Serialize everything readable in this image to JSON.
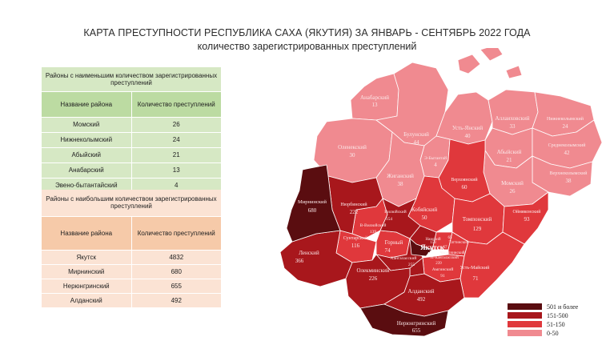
{
  "title": "КАРТА ПРЕСТУПНОСТИ РЕСПУБЛИКА САХА  (ЯКУТИЯ) ЗА ЯНВАРЬ - СЕНТЯБРЬ 2022 ГОДА",
  "subtitle": "количество зарегистрированных преступлений",
  "least_table": {
    "heading": "Районы с наименьшим количеством зарегистрированных преступлений",
    "col_district": "Название района",
    "col_count": "Количество преступлений",
    "rows": [
      {
        "district": "Момский",
        "count": "26"
      },
      {
        "district": "Нижнеколымский",
        "count": "24"
      },
      {
        "district": "Абыйский",
        "count": "21"
      },
      {
        "district": "Анабарский",
        "count": "13"
      },
      {
        "district": "Эвено-бытантайский",
        "count": "4"
      }
    ]
  },
  "most_table": {
    "heading": "Районы с наибольшим количеством зарегистрированных преступлений",
    "col_district": "Название района",
    "col_count": "Количество преступлений",
    "rows": [
      {
        "district": "Якутск",
        "count": "4832"
      },
      {
        "district": "Мирнинский",
        "count": "680"
      },
      {
        "district": "Нерюнгринский",
        "count": "655"
      },
      {
        "district": "Алданский",
        "count": "492"
      }
    ]
  },
  "legend": [
    {
      "label": "501 и более",
      "color": "#5a0d10"
    },
    {
      "label": "151-500",
      "color": "#a8171c"
    },
    {
      "label": "51-150",
      "color": "#e0383c"
    },
    {
      "label": "0-50",
      "color": "#f08a90"
    }
  ],
  "map_labels": {
    "anabar_name": "Анабарский",
    "anabar_val": "13",
    "oleneksky_name": "Оленекский",
    "oleneksky_val": "30",
    "bulunsky_name": "Булунский",
    "bulunsky_val": "44",
    "ustyansky_name": "Усть-Янский",
    "ustyansky_val": "40",
    "allaikhov_name": "Аллаиховский",
    "allaikhov_val": "33",
    "nizhnekolym_name": "Нижнеколымский",
    "nizhnekolym_val": "24",
    "abyisky_name": "Абыйский",
    "abyisky_val": "21",
    "srednekolym_name": "Среднеколымский",
    "srednekolym_val": "42",
    "verkhnekolym_name": "Верхнеколымский",
    "verkhnekolym_val": "38",
    "momsky_name": "Момский",
    "momsky_val": "26",
    "eveno_name": "Э-Бытантай",
    "eveno_val": "4",
    "zhigansky_name": "Жиганский",
    "zhigansky_val": "38",
    "verkhoyansky_name": "Верхоянский",
    "verkhoyansky_val": "60",
    "mirninsky_name": "Мирнинский",
    "mirninsky_val": "680",
    "nyurbinsky_name": "Нюрбинский",
    "nyurbinsky_val": "222",
    "vilyuysky_name": "Вилюйский",
    "vilyuysky_val": "154",
    "vverkh_name": "В-Вилюйский",
    "vverkh_val": "139",
    "kobyaysky_name": "Кобяйский",
    "kobyaysky_val": "50",
    "tomponsky_name": "Томпонский",
    "tomponsky_val": "129",
    "oymyakonsky_name": "Оймяконский",
    "oymyakonsky_val": "93",
    "suntarsky_name": "Сунтарский",
    "suntarsky_val": "116",
    "gorny_name": "Горный",
    "gorny_val": "74",
    "yakutsk_name": "Якутск",
    "yakutsk_val": "4832",
    "khangalassky_name": "Хангаласский",
    "khangalassky_val": "255",
    "mmegino_name": "М-Кангаласский",
    "mmegino_val": "239",
    "churapchinsky_name": "Чурапчинский",
    "churapchinsky_val": "67",
    "tattinsky_name": "Таттинский",
    "tattinsky_val": "65",
    "amginsky_name": "Амгинский",
    "amginsky_val": "91",
    "ustmaysky_name": "Усть-Майский",
    "ustmaysky_val": "71",
    "namsky_name": "Намский",
    "namsky_val": "153",
    "lensky_name": "Ленский",
    "lensky_val": "366",
    "olekminsky_name": "Олекминский",
    "olekminsky_val": "226",
    "aldansky_name": "Алданский",
    "aldansky_val": "492",
    "neryungrinsky_name": "Нерюнгринский",
    "neryungrinsky_val": "655"
  }
}
